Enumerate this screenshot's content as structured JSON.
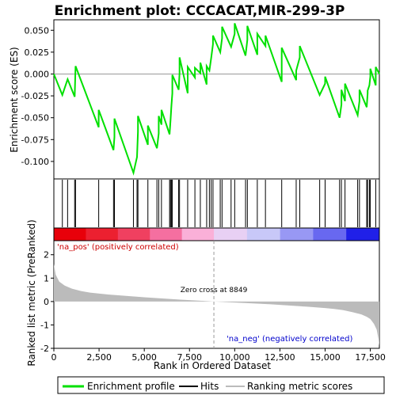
{
  "chart_data": {
    "type": "line",
    "title": "Enrichment plot: CCCACAT,MIR-299-3P",
    "ylabel_top": "Enrichment score (ES)",
    "ylabel_bottom": "Ranked list metric (PreRanked)",
    "xlabel": "Rank in Ordered Dataset",
    "xlim": [
      0,
      18000
    ],
    "es_ylim": [
      -0.12,
      0.062
    ],
    "metric_ylim": [
      -2.0,
      2.6
    ],
    "x_ticks": [
      0,
      2500,
      5000,
      7500,
      10000,
      12500,
      15000,
      17500
    ],
    "x_tick_labels": [
      "0",
      "2,500",
      "5,000",
      "7,500",
      "10,000",
      "12,500",
      "15,000",
      "17,500"
    ],
    "es_y_ticks": [
      0.05,
      0.025,
      0.0,
      -0.025,
      -0.05,
      -0.075,
      -0.1
    ],
    "es_y_tick_labels": [
      "0.050",
      "0.025",
      "0.000",
      "-0.025",
      "-0.050",
      "-0.075",
      "-0.100"
    ],
    "metric_y_ticks": [
      2,
      1,
      0,
      -1,
      -2
    ],
    "metric_y_tick_labels": [
      "2",
      "1",
      "0",
      "-1",
      "-2"
    ],
    "zero_cross_rank": 8849,
    "annotations": {
      "zero_cross": "Zero cross at 8849",
      "pos_label": "'na_pos' (positively correlated)",
      "neg_label": "'na_neg' (negatively correlated)"
    },
    "legend": {
      "items": [
        {
          "label": "Enrichment profile",
          "color": "#00e000"
        },
        {
          "label": "Hits",
          "color": "#000000"
        },
        {
          "label": "Ranking metric scores",
          "color": "#bbbbbb"
        }
      ]
    },
    "hits": [
      470,
      760,
      1150,
      1200,
      2480,
      3300,
      3350,
      4400,
      4600,
      4650,
      5200,
      5700,
      5800,
      5950,
      6400,
      6450,
      6500,
      6550,
      6900,
      6950,
      7400,
      7800,
      8100,
      8450,
      8600,
      8700,
      8800,
      9200,
      9300,
      9800,
      10000,
      10600,
      10700,
      11250,
      11700,
      12600,
      13400,
      13600,
      14700,
      15000,
      15800,
      15900,
      16100,
      16800,
      16900,
      17300,
      17350,
      17450,
      17500,
      17800
    ],
    "es_profile": {
      "x": [
        0,
        470,
        760,
        1150,
        1200,
        2480,
        3300,
        3350,
        4400,
        4600,
        4650,
        5200,
        5700,
        5800,
        5950,
        6400,
        6450,
        6500,
        6550,
        6900,
        6950,
        7400,
        7800,
        8100,
        8450,
        8600,
        8700,
        8800,
        9200,
        9300,
        9800,
        10000,
        10600,
        10700,
        11250,
        11700,
        12600,
        13400,
        13600,
        14700,
        15000,
        15800,
        15900,
        16100,
        16800,
        16900,
        17300,
        17350,
        17450,
        17500,
        17800,
        18000
      ],
      "y": [
        0.0,
        -0.024,
        -0.006,
        -0.026,
        0.009,
        -0.061,
        -0.087,
        -0.072,
        -0.113,
        -0.095,
        -0.066,
        -0.081,
        -0.085,
        -0.068,
        -0.058,
        -0.069,
        -0.053,
        -0.037,
        -0.022,
        -0.018,
        0.001,
        -0.022,
        -0.004,
        0.001,
        -0.012,
        0.004,
        0.018,
        0.034,
        0.025,
        0.041,
        0.031,
        0.046,
        0.021,
        0.039,
        0.022,
        0.032,
        -0.009,
        -0.007,
        0.019,
        -0.024,
        -0.011,
        -0.05,
        -0.035,
        -0.031,
        -0.047,
        -0.031,
        -0.038,
        -0.022,
        -0.013,
        -0.003,
        -0.013,
        0.0
      ]
    },
    "es_peaks": [
      {
        "x": 1200,
        "y": 0.009
      },
      {
        "x": 2480,
        "y": -0.041
      },
      {
        "x": 3350,
        "y": -0.051
      },
      {
        "x": 4650,
        "y": -0.048
      },
      {
        "x": 5200,
        "y": -0.059
      },
      {
        "x": 5800,
        "y": -0.048
      },
      {
        "x": 5950,
        "y": -0.041
      },
      {
        "x": 6550,
        "y": -0.001
      },
      {
        "x": 6950,
        "y": 0.019
      },
      {
        "x": 7400,
        "y": 0.008
      },
      {
        "x": 7800,
        "y": 0.007
      },
      {
        "x": 8100,
        "y": 0.013
      },
      {
        "x": 8450,
        "y": 0.009
      },
      {
        "x": 8800,
        "y": 0.044
      },
      {
        "x": 9300,
        "y": 0.054
      },
      {
        "x": 10000,
        "y": 0.058
      },
      {
        "x": 10700,
        "y": 0.055
      },
      {
        "x": 11250,
        "y": 0.046
      },
      {
        "x": 11700,
        "y": 0.044
      },
      {
        "x": 12600,
        "y": 0.03
      },
      {
        "x": 13400,
        "y": 0.004
      },
      {
        "x": 13600,
        "y": 0.032
      },
      {
        "x": 15000,
        "y": -0.003
      },
      {
        "x": 15900,
        "y": -0.018
      },
      {
        "x": 16100,
        "y": -0.011
      },
      {
        "x": 16900,
        "y": -0.018
      },
      {
        "x": 17350,
        "y": -0.019
      },
      {
        "x": 17500,
        "y": 0.006
      },
      {
        "x": 17800,
        "y": 0.008
      }
    ],
    "metric_profile": {
      "x": [
        0,
        100,
        300,
        600,
        1000,
        1500,
        2000,
        3000,
        4000,
        5000,
        6000,
        7000,
        8000,
        8849,
        10000,
        11000,
        12000,
        13000,
        14000,
        15000,
        15500,
        16000,
        16500,
        17000,
        17300,
        17500,
        17700,
        17850,
        17950,
        18000
      ],
      "y": [
        1.6,
        1.15,
        0.85,
        0.68,
        0.55,
        0.45,
        0.38,
        0.3,
        0.24,
        0.18,
        0.13,
        0.08,
        0.04,
        0.0,
        -0.04,
        -0.08,
        -0.12,
        -0.17,
        -0.22,
        -0.28,
        -0.32,
        -0.37,
        -0.45,
        -0.55,
        -0.65,
        -0.75,
        -0.95,
        -1.2,
        -1.6,
        -1.9
      ]
    },
    "colorbar_colors": [
      "#e8000a",
      "#ec2030",
      "#f04060",
      "#f56fa0",
      "#fab0d8",
      "#e8d0f4",
      "#c8c8f8",
      "#9898f4",
      "#6868f0",
      "#2020e8"
    ]
  }
}
